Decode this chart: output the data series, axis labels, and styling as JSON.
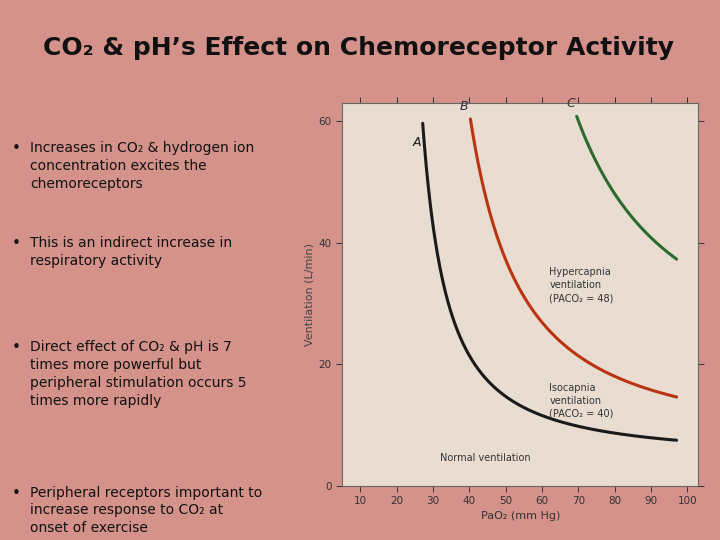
{
  "slide_bg": "#d4928a",
  "title_text": "CO₂ & pH’s Effect on Chemoreceptor Activity",
  "title_fontsize": 18,
  "title_color": "#111111",
  "chart_bg": "#e8ddd0",
  "bullet_points": [
    "Increases in CO₂ & hydrogen ion\nconcentration excites the\nchemoreceptors",
    "This is an indirect increase in\nrespiratory activity",
    "Direct effect of CO₂ & pH is 7\ntimes more powerful but\nperipheral stimulation occurs 5\ntimes more rapidly",
    "Peripheral receptors important to\nincrease response to CO₂ at\nonset of exercise"
  ],
  "bullet_fontsize": 10,
  "text_color": "#111111",
  "curve_A_label": "A",
  "curve_B_label": "B",
  "curve_C_label": "C",
  "curve_A_color": "#1a1a1a",
  "curve_B_color": "#bb3311",
  "curve_C_color": "#2d6a2d",
  "xlabel": "PaO₂ (mm Hg)",
  "ylabel": "Ventilation (L/min)",
  "xlim": [
    5,
    103
  ],
  "ylim": [
    0,
    63
  ],
  "xticks": [
    10,
    20,
    30,
    40,
    50,
    60,
    70,
    80,
    90,
    100
  ],
  "yticks": [
    0,
    20,
    40,
    60
  ],
  "legend_hypercapnia": "Hypercapnia\nventilation\n(PACO₂ = 48)",
  "legend_isocapnia": "Isocapnia\nventilation\n(PACO₂ = 40)",
  "legend_normal": "Normal ventilation"
}
